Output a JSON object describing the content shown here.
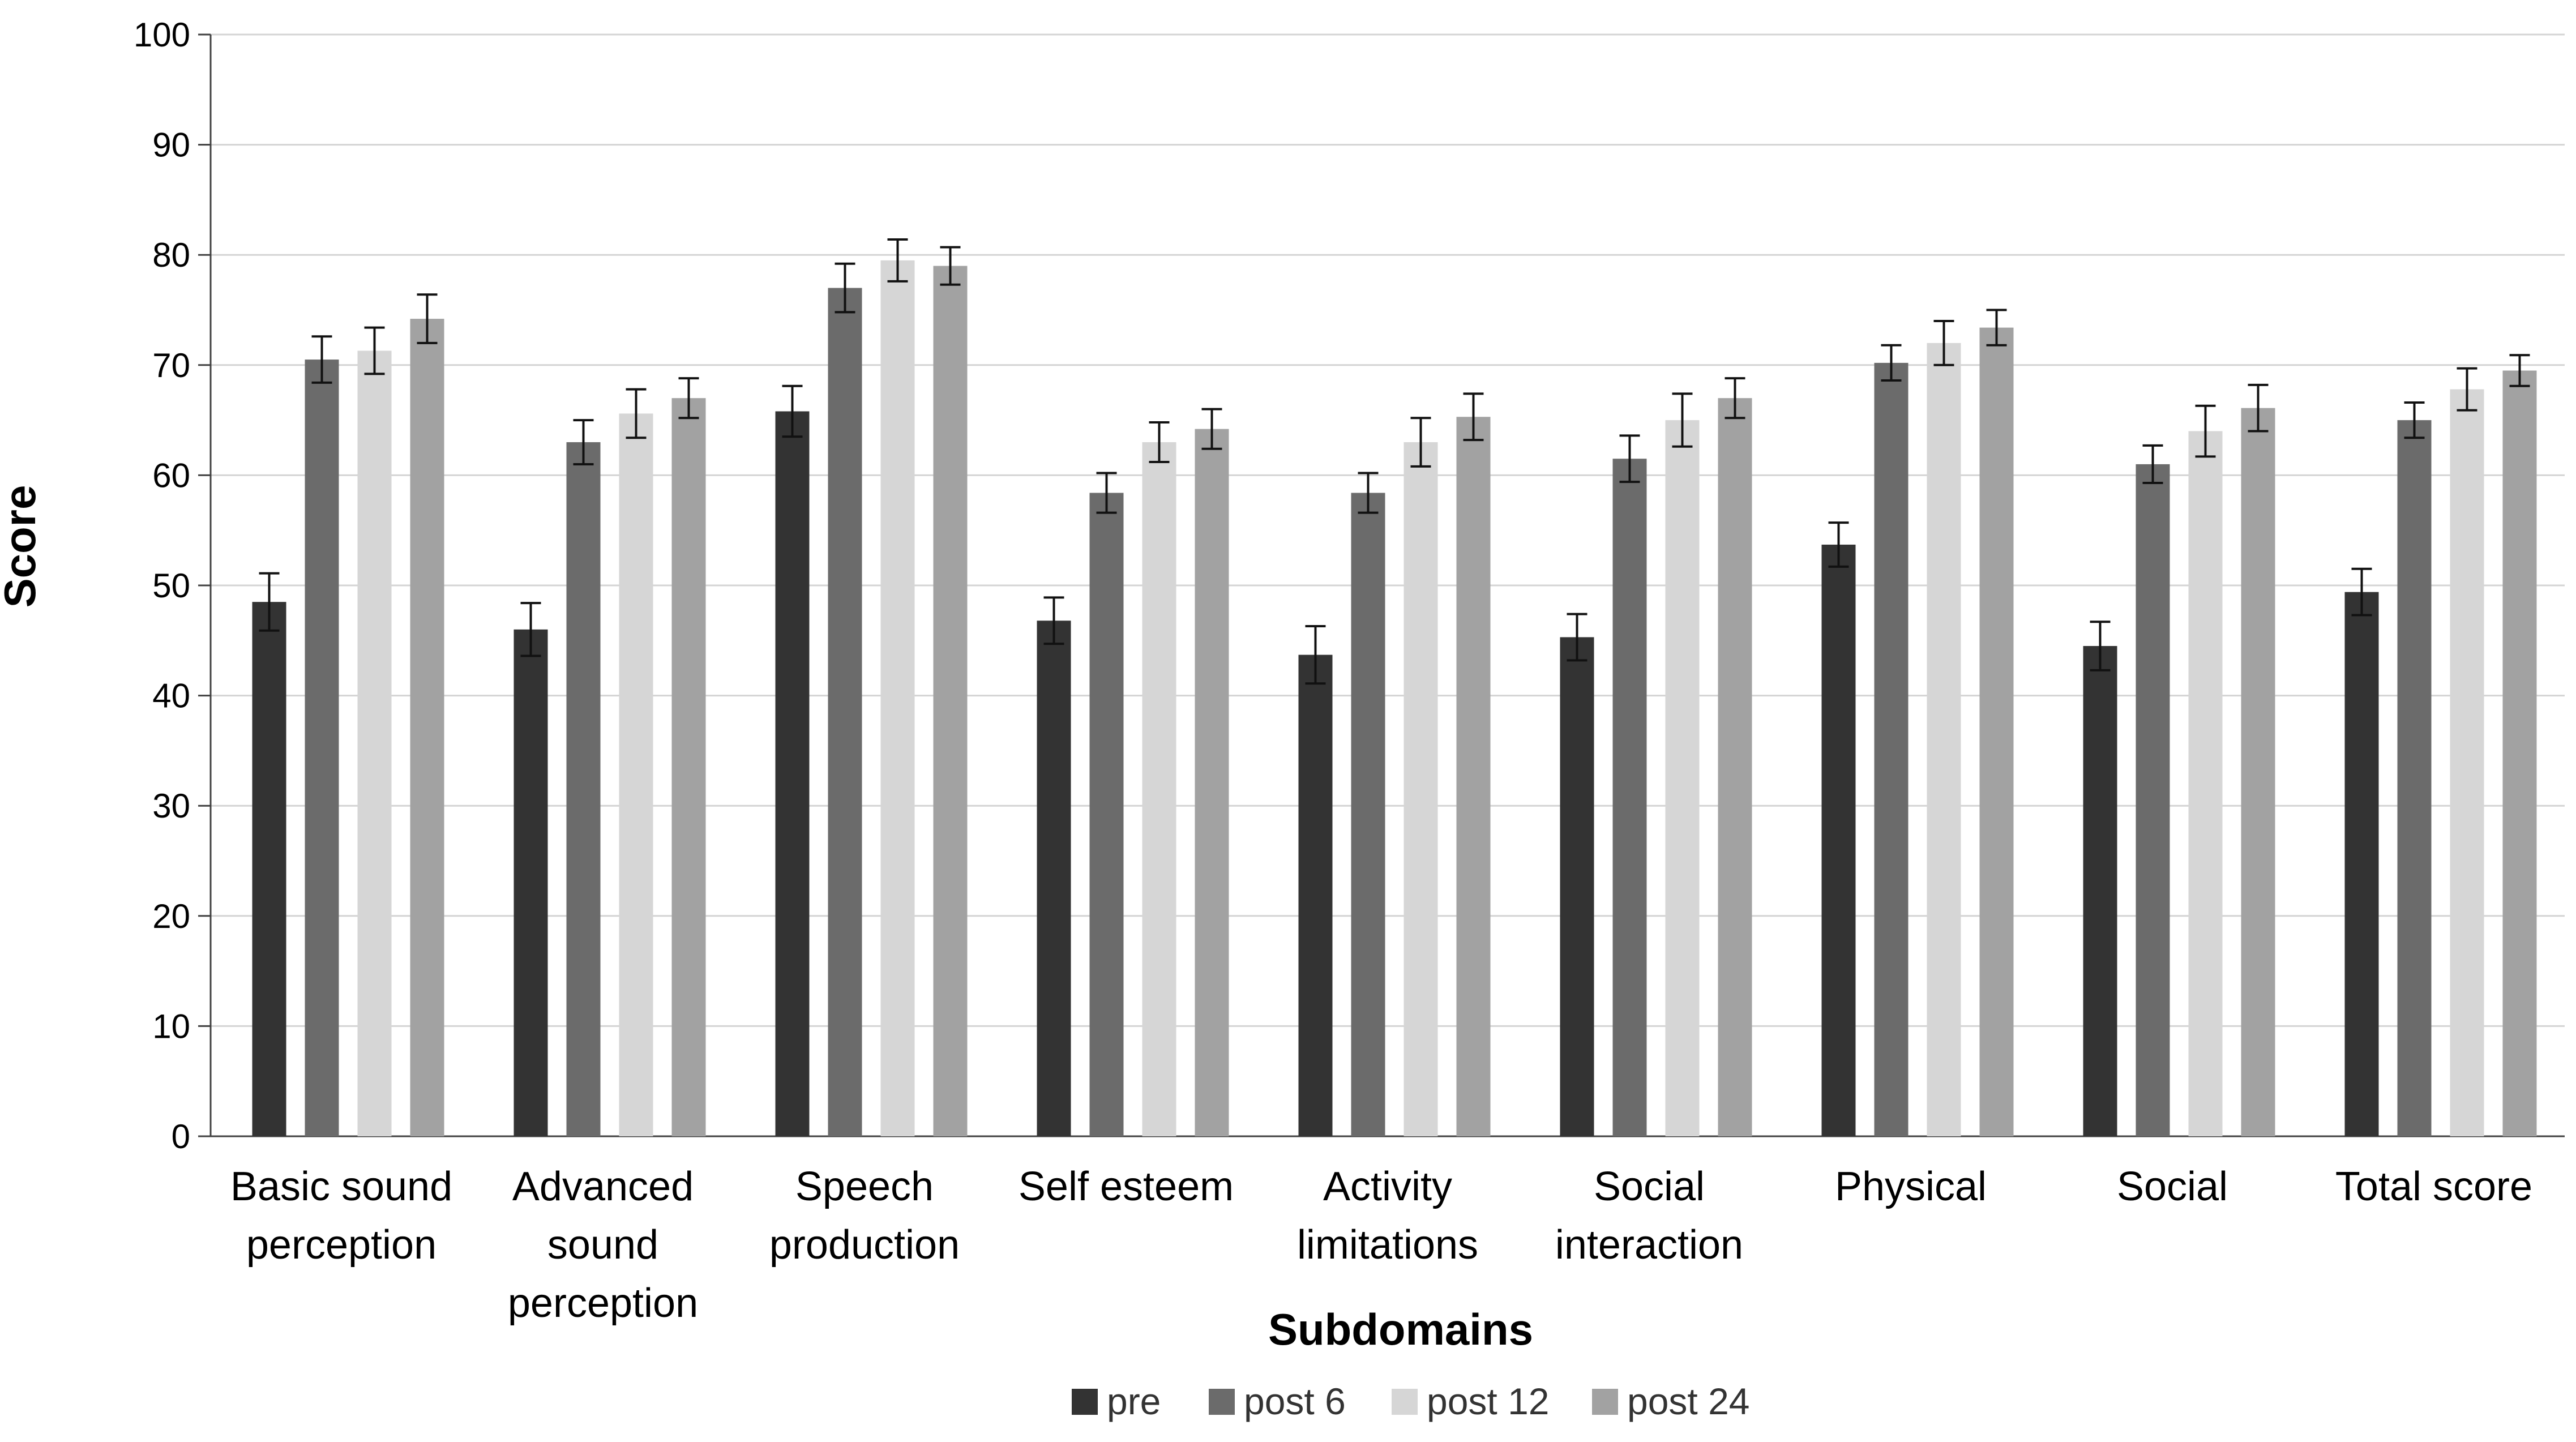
{
  "chart_data": {
    "type": "bar",
    "title": "",
    "xlabel": "Subdomains",
    "ylabel": "Score",
    "ylim": [
      0,
      100
    ],
    "yticks": [
      "0",
      "10",
      "20",
      "30",
      "40",
      "50",
      "60",
      "70",
      "80",
      "90",
      "100"
    ],
    "grid": true,
    "legend_position": "bottom",
    "categories": [
      [
        "Basic sound",
        "perception"
      ],
      [
        "Advanced",
        "sound",
        "perception"
      ],
      [
        "Speech",
        "production"
      ],
      [
        "Self esteem"
      ],
      [
        "Activity",
        "limitations"
      ],
      [
        "Social",
        "interaction"
      ],
      [
        "Physical"
      ],
      [
        "Social"
      ],
      [
        "Total  score"
      ]
    ],
    "series": [
      {
        "name": "pre",
        "color": "#333333",
        "values": [
          48.5,
          46.0,
          65.8,
          46.8,
          43.7,
          45.3,
          53.7,
          44.5,
          49.4
        ],
        "errors": [
          2.6,
          2.4,
          2.3,
          2.1,
          2.6,
          2.1,
          2.0,
          2.2,
          2.1
        ]
      },
      {
        "name": "post 6",
        "color": "#6b6b6b",
        "values": [
          70.5,
          63.0,
          77.0,
          58.4,
          58.4,
          61.5,
          70.2,
          61.0,
          65.0
        ],
        "errors": [
          2.1,
          2.0,
          2.2,
          1.8,
          1.8,
          2.1,
          1.6,
          1.7,
          1.6
        ]
      },
      {
        "name": "post 12",
        "color": "#d6d6d6",
        "values": [
          71.3,
          65.6,
          79.5,
          63.0,
          63.0,
          65.0,
          72.0,
          64.0,
          67.8
        ],
        "errors": [
          2.1,
          2.2,
          1.9,
          1.8,
          2.2,
          2.4,
          2.0,
          2.3,
          1.9
        ]
      },
      {
        "name": "post 24",
        "color": "#a2a2a2",
        "values": [
          74.2,
          67.0,
          79.0,
          64.2,
          65.3,
          67.0,
          73.4,
          66.1,
          69.5
        ],
        "errors": [
          2.2,
          1.8,
          1.7,
          1.8,
          2.1,
          1.8,
          1.6,
          2.1,
          1.4
        ]
      }
    ]
  }
}
